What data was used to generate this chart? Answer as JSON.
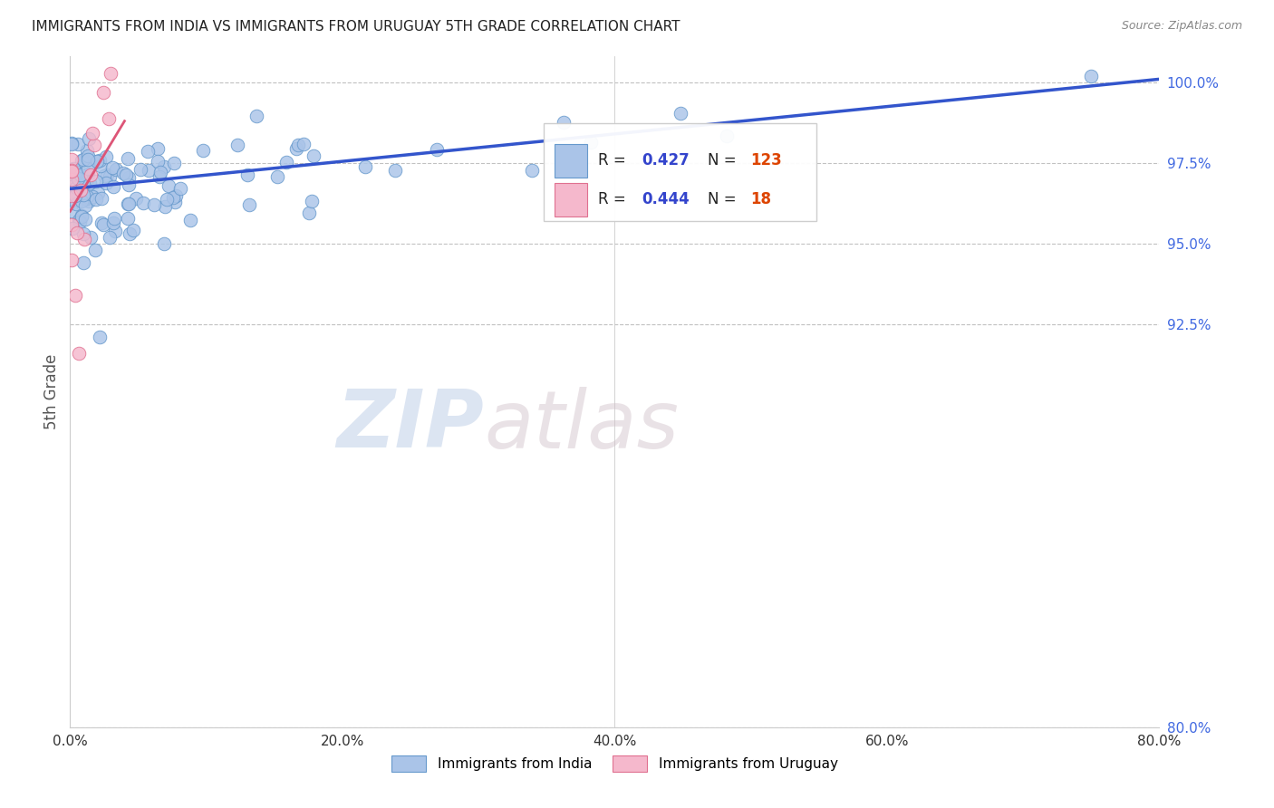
{
  "title": "IMMIGRANTS FROM INDIA VS IMMIGRANTS FROM URUGUAY 5TH GRADE CORRELATION CHART",
  "source": "Source: ZipAtlas.com",
  "ylabel": "5th Grade",
  "x_min": 0.0,
  "x_max": 0.8,
  "y_min": 0.8,
  "y_max": 1.008,
  "x_ticks": [
    0.0,
    0.2,
    0.4,
    0.6,
    0.8
  ],
  "y_ticks": [
    0.8,
    0.925,
    0.95,
    0.975,
    1.0
  ],
  "y_tick_labels": [
    "80.0%",
    "92.5%",
    "95.0%",
    "97.5%",
    "100.0%"
  ],
  "india_color": "#aac4e8",
  "india_edge_color": "#6699cc",
  "uruguay_color": "#f5b8cc",
  "uruguay_edge_color": "#e07090",
  "india_line_color": "#3355cc",
  "uruguay_line_color": "#dd5577",
  "R_india": 0.427,
  "N_india": 123,
  "R_uruguay": 0.444,
  "N_uruguay": 18,
  "legend_india": "Immigrants from India",
  "legend_uruguay": "Immigrants from Uruguay",
  "watermark_zip": "ZIP",
  "watermark_atlas": "atlas",
  "grid_color": "#bbbbbb",
  "background_color": "#ffffff",
  "title_color": "#222222",
  "axis_label_color": "#555555",
  "right_tick_color": "#4169e1",
  "N_color": "#cc3300",
  "R_label_color": "#222222",
  "R_value_color": "#3344cc"
}
